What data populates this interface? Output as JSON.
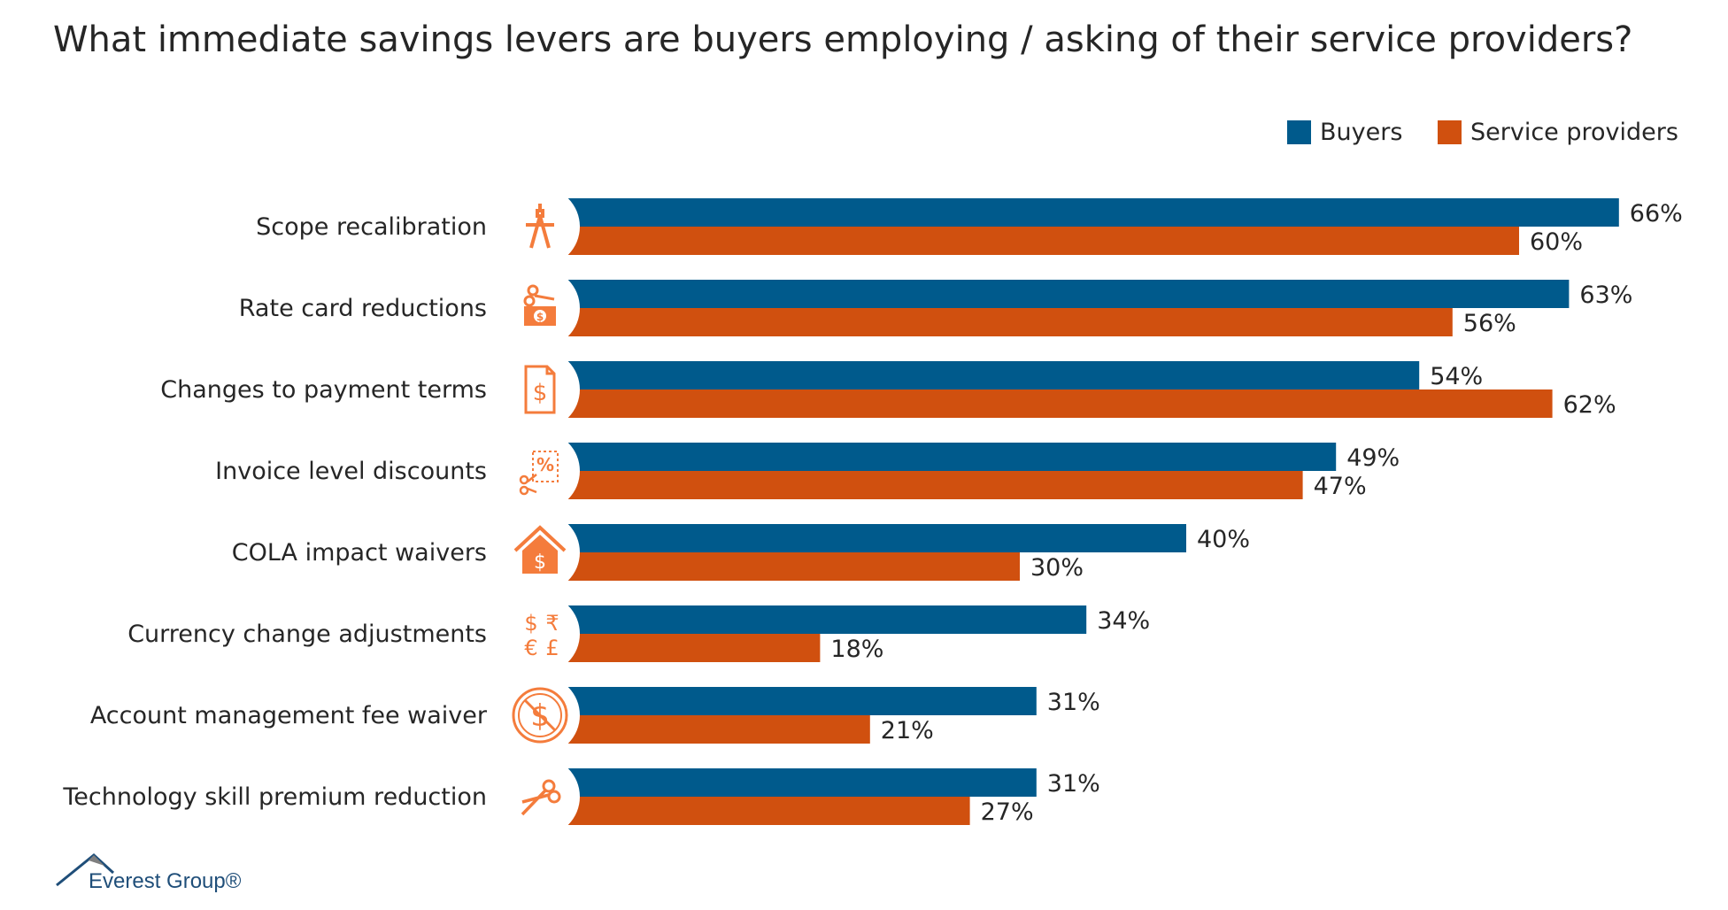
{
  "chart_data": {
    "type": "bar",
    "orientation": "horizontal",
    "title": "What immediate savings levers are buyers employing / asking of their service providers?",
    "categories": [
      "Scope recalibration",
      "Rate card reductions",
      "Changes to payment terms",
      "Invoice level discounts",
      "COLA impact waivers",
      "Currency change adjustments",
      "Account management fee waiver",
      "Technology skill premium reduction"
    ],
    "icons": [
      "compass-icon",
      "scissors-cash-icon",
      "dollar-document-icon",
      "discount-coupon-icon",
      "house-dollar-icon",
      "currency-symbols-icon",
      "no-fee-icon",
      "scissors-icon"
    ],
    "series": [
      {
        "name": "Buyers",
        "color": "#005a8c",
        "values": [
          66,
          63,
          54,
          49,
          40,
          34,
          31,
          31
        ]
      },
      {
        "name": "Service providers",
        "color": "#d0500f",
        "values": [
          60,
          56,
          62,
          47,
          30,
          18,
          21,
          27
        ]
      }
    ],
    "value_suffix": "%",
    "legend_position": "top-right",
    "grid": false
  },
  "icon_color": "#f47c3c",
  "logo": {
    "text": "Everest Group®"
  }
}
